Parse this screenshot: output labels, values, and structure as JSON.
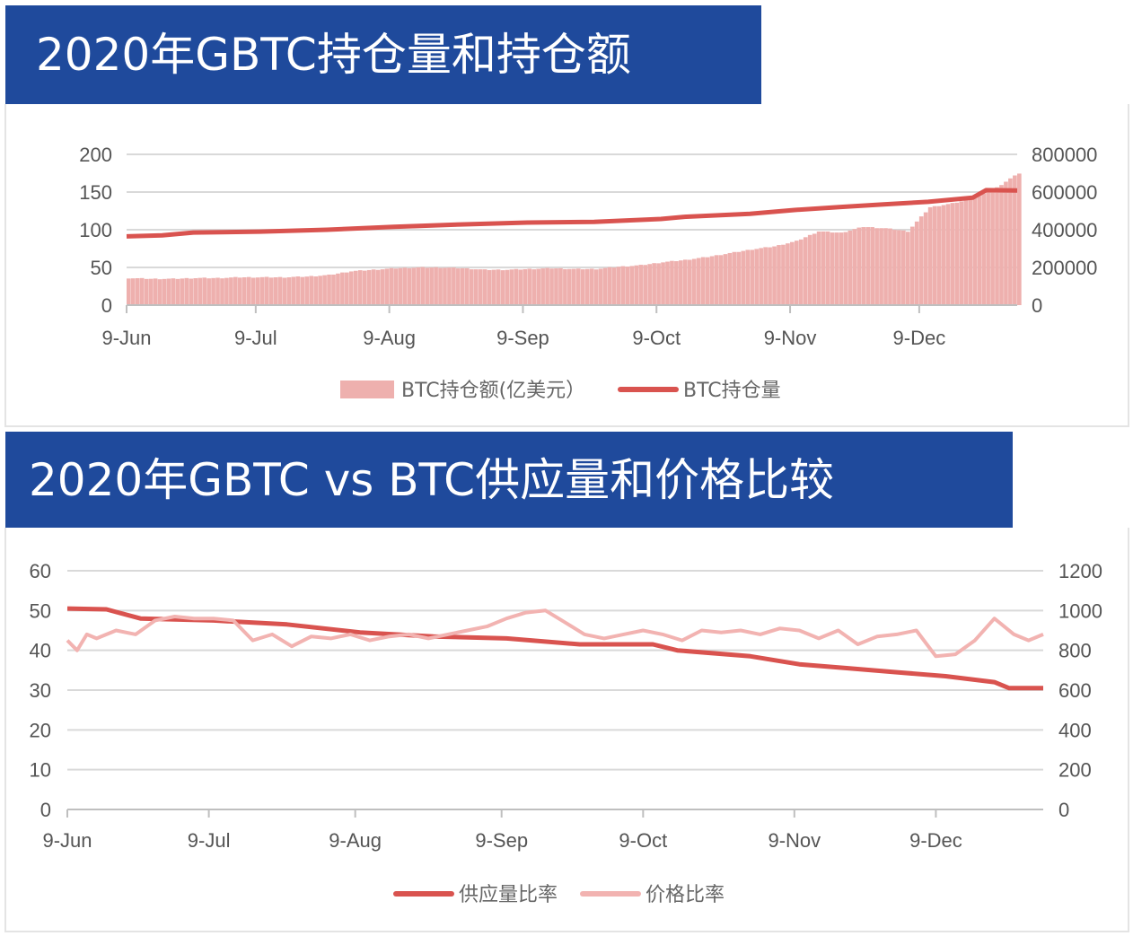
{
  "charts": [
    {
      "title": "2020年GBTC持仓量和持仓额",
      "chart_data": {
        "type": "bar+line",
        "categories": [
          "9-Jun",
          "9-Jul",
          "9-Aug",
          "9-Sep",
          "9-Oct",
          "9-Nov",
          "9-Dec"
        ],
        "y_left_ticks": [
          "0",
          "50",
          "100",
          "150",
          "200"
        ],
        "y_right_ticks": [
          "0",
          "200000",
          "400000",
          "600000",
          "800000"
        ],
        "y_left_lim": [
          0,
          200
        ],
        "y_right_lim": [
          0,
          800000
        ],
        "grid": true,
        "legend_position": "bottom",
        "series": [
          {
            "name": "BTC持仓额(亿美元）",
            "type": "bar",
            "axis": "left",
            "color": "#eeb0ae",
            "x": [
              0,
              5,
              10,
              15,
              20,
              25,
              30,
              35,
              40,
              45,
              50,
              55,
              60,
              65,
              70,
              75,
              80,
              85,
              90,
              95,
              100,
              105,
              110,
              115,
              120,
              125,
              130,
              135,
              140,
              145,
              150,
              155,
              160,
              165,
              170,
              175,
              180,
              185,
              190,
              195,
              198,
              200
            ],
            "values": [
              36,
              35,
              35,
              36,
              36,
              37,
              37,
              37,
              38,
              40,
              45,
              47,
              49,
              50,
              50,
              49,
              47,
              47,
              48,
              49,
              48,
              48,
              51,
              53,
              57,
              60,
              64,
              69,
              74,
              78,
              85,
              98,
              96,
              104,
              102,
              98,
              130,
              135,
              142,
              156,
              168,
              175
            ]
          },
          {
            "name": "BTC持仓量",
            "type": "line",
            "axis": "right",
            "color": "#d9534f",
            "x": [
              0,
              8,
              15,
              30,
              45,
              60,
              75,
              90,
              105,
              120,
              125,
              140,
              150,
              160,
              170,
              180,
              190,
              193,
              200
            ],
            "values": [
              365000,
              370000,
              385000,
              390000,
              400000,
              415000,
              428000,
              438000,
              442000,
              457000,
              468000,
              485000,
              505000,
              520000,
              535000,
              548000,
              570000,
              610000,
              608000
            ]
          }
        ]
      },
      "legend": [
        "BTC持仓额(亿美元）",
        "BTC持仓量"
      ]
    },
    {
      "title": "2020年GBTC vs BTC供应量和价格比较",
      "chart_data": {
        "type": "line",
        "categories": [
          "9-Jun",
          "9-Jul",
          "9-Aug",
          "9-Sep",
          "9-Oct",
          "9-Nov",
          "9-Dec"
        ],
        "y_left_ticks": [
          "0",
          "10",
          "20",
          "30",
          "40",
          "50",
          "60"
        ],
        "y_right_ticks": [
          "0",
          "200",
          "400",
          "600",
          "800",
          "1000",
          "1200"
        ],
        "y_left_lim": [
          0,
          60
        ],
        "y_right_lim": [
          0,
          1200
        ],
        "grid": true,
        "legend_position": "bottom",
        "series": [
          {
            "name": "供应量比率",
            "type": "line",
            "axis": "left",
            "color": "#d9534f",
            "x": [
              0,
              8,
              15,
              30,
              45,
              60,
              75,
              90,
              105,
              120,
              125,
              140,
              150,
              160,
              170,
              180,
              190,
              193,
              200
            ],
            "values": [
              50.5,
              50.3,
              48.0,
              47.5,
              46.5,
              44.5,
              43.5,
              43.0,
              41.5,
              41.5,
              40.0,
              38.5,
              36.5,
              35.5,
              34.5,
              33.5,
              32.0,
              30.5,
              30.5
            ]
          },
          {
            "name": "价格比率",
            "type": "line",
            "axis": "right",
            "color": "#f2b3b1",
            "x": [
              0,
              2,
              4,
              6,
              10,
              14,
              18,
              22,
              26,
              30,
              34,
              38,
              42,
              46,
              50,
              54,
              58,
              62,
              66,
              70,
              74,
              78,
              82,
              86,
              90,
              94,
              98,
              102,
              106,
              110,
              114,
              118,
              122,
              126,
              130,
              134,
              138,
              142,
              146,
              150,
              154,
              158,
              162,
              166,
              170,
              174,
              178,
              182,
              186,
              190,
              194,
              197,
              200
            ],
            "values": [
              850,
              800,
              880,
              860,
              900,
              880,
              950,
              970,
              960,
              960,
              950,
              850,
              880,
              820,
              870,
              860,
              880,
              850,
              870,
              880,
              860,
              880,
              900,
              920,
              960,
              990,
              1000,
              940,
              880,
              860,
              880,
              900,
              880,
              850,
              900,
              890,
              900,
              880,
              910,
              900,
              860,
              900,
              830,
              870,
              880,
              900,
              770,
              780,
              850,
              960,
              880,
              850,
              880
            ]
          }
        ]
      },
      "legend": [
        "供应量比率",
        "价格比率"
      ]
    }
  ]
}
